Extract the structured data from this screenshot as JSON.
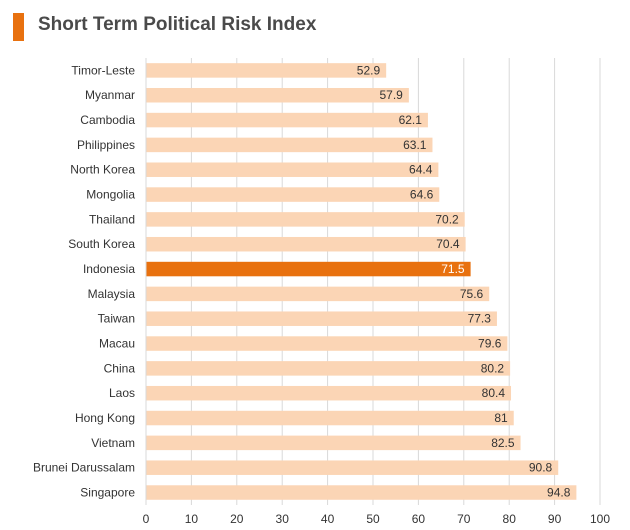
{
  "title": "Short Term Political Risk Index",
  "colors": {
    "accent": "#e8710f",
    "bar": "#fbd5b5",
    "highlight": "#e8710f",
    "grid": "#d9d9d9"
  },
  "chart_data": {
    "type": "bar",
    "orientation": "horizontal",
    "title": "Short Term Political Risk Index",
    "xlabel": "",
    "ylabel": "",
    "xlim": [
      0,
      100
    ],
    "xticks": [
      0,
      10,
      20,
      30,
      40,
      50,
      60,
      70,
      80,
      90,
      100
    ],
    "grid": true,
    "highlight_category": "Indonesia",
    "categories": [
      "Timor-Leste",
      "Myanmar",
      "Cambodia",
      "Philippines",
      "North Korea",
      "Mongolia",
      "Thailand",
      "South Korea",
      "Indonesia",
      "Malaysia",
      "Taiwan",
      "Macau",
      "China",
      "Laos",
      "Hong Kong",
      "Vietnam",
      "Brunei Darussalam",
      "Singapore"
    ],
    "values": [
      52.9,
      57.9,
      62.1,
      63.1,
      64.4,
      64.6,
      70.2,
      70.4,
      71.5,
      75.6,
      77.3,
      79.6,
      80.2,
      80.4,
      81,
      82.5,
      90.8,
      94.8
    ]
  }
}
